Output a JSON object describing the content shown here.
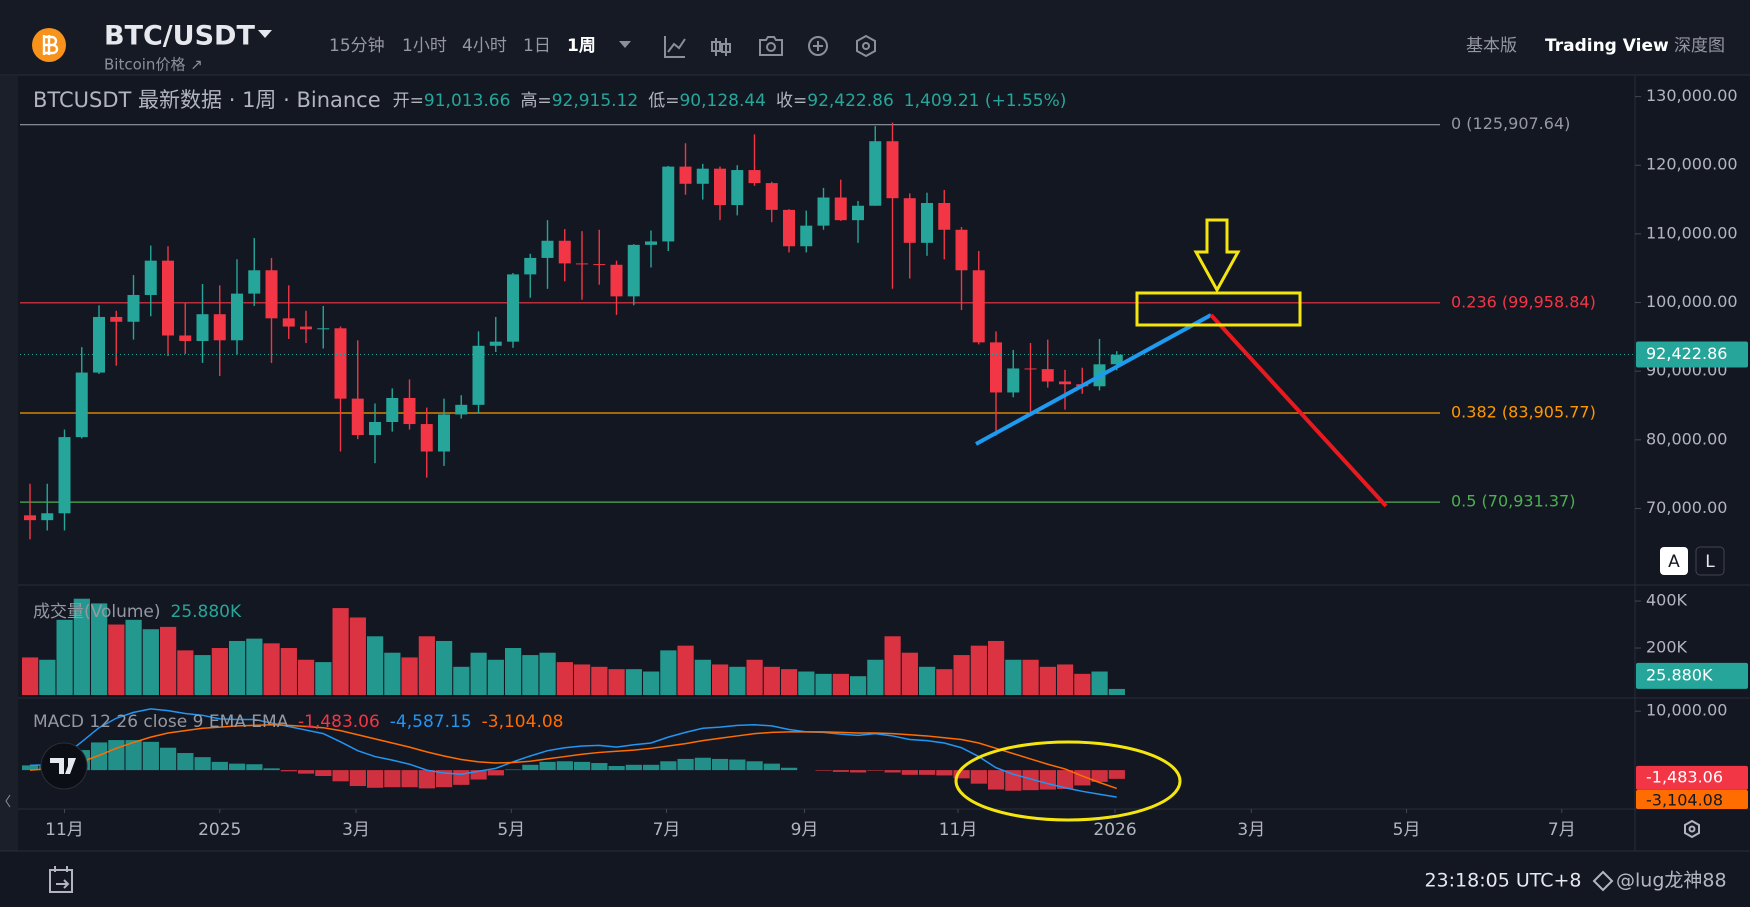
{
  "header": {
    "symbol": "BTC/USDT",
    "subtitle": "Bitcoin价格 ↗",
    "intervals": [
      "15分钟",
      "1小时",
      "4小时",
      "1日"
    ],
    "active_interval": "1周",
    "views": [
      "基本版",
      "Trading View",
      "深度图"
    ]
  },
  "legend": {
    "symbol_line": "BTCUSDT 最新数据 · 1周 · Binance",
    "ohlc": [
      {
        "key": "开=",
        "value": "91,013.66"
      },
      {
        "key": "高=",
        "value": "92,915.12"
      },
      {
        "key": "低=",
        "value": "90,128.44"
      },
      {
        "key": "收=",
        "value": "92,422.86"
      }
    ],
    "change": "1,409.21 (+1.55%)",
    "price_label": "92,422.86",
    "volume_title": "成交量(Volume)",
    "volume_value": "25.880K",
    "macd_title": "MACD 12 26 close 9 EMA EMA",
    "macd_hist": "-1,483.06",
    "macd_line": "-4,587.15",
    "macd_signal": "-3,104.08",
    "scale_buttons": [
      "A",
      "L"
    ]
  },
  "footer": {
    "time": "23:18:05 UTC+8",
    "watermark": "@lug龙神88"
  },
  "chart_data": {
    "type": "candlestick",
    "up_color": "#26a69a",
    "down_color": "#f23645",
    "ylim": [
      59000,
      133000
    ],
    "yticks": [
      {
        "value": 70000,
        "label": "70,000.00"
      },
      {
        "value": 80000,
        "label": "80,000.00"
      },
      {
        "value": 90000,
        "label": "90,000.00"
      },
      {
        "value": 100000,
        "label": "100,000.00"
      },
      {
        "value": 110000,
        "label": "110,000.00"
      },
      {
        "value": 120000,
        "label": "120,000.00"
      },
      {
        "value": 130000,
        "label": "130,000.00"
      }
    ],
    "xticks": [
      {
        "value": 2,
        "label": "11月"
      },
      {
        "value": 11,
        "label": "2025"
      },
      {
        "value": 18.9,
        "label": "3月"
      },
      {
        "value": 27.9,
        "label": "5月"
      },
      {
        "value": 36.9,
        "label": "7月"
      },
      {
        "value": 44.9,
        "label": "9月"
      },
      {
        "value": 53.8,
        "label": "11月"
      },
      {
        "value": 62.9,
        "label": "2026"
      },
      {
        "value": 70.8,
        "label": "3月"
      },
      {
        "value": 79.8,
        "label": "5月"
      },
      {
        "value": 88.8,
        "label": "7月"
      }
    ],
    "fib_levels": [
      {
        "price": 125907.64,
        "label": "0 (125,907.64)",
        "color": "#9598a1"
      },
      {
        "price": 99958.84,
        "label": "0.236 (99,958.84)",
        "color": "#f23645"
      },
      {
        "price": 83905.77,
        "label": "0.382 (83,905.77)",
        "color": "#ff9800"
      },
      {
        "price": 70931.37,
        "label": "0.5 (70,931.37)",
        "color": "#4caf50"
      }
    ],
    "candles": [
      [
        69000,
        73600,
        65500,
        68300,
        160
      ],
      [
        68300,
        73600,
        66800,
        69300,
        150
      ],
      [
        69300,
        81500,
        66800,
        80400,
        320
      ],
      [
        80400,
        93500,
        80200,
        89800,
        410
      ],
      [
        89800,
        99600,
        89600,
        97900,
        390
      ],
      [
        97900,
        98800,
        90800,
        97200,
        300
      ],
      [
        97200,
        104000,
        94600,
        101100,
        320
      ],
      [
        101100,
        108300,
        98000,
        106100,
        280
      ],
      [
        106100,
        108200,
        92200,
        95200,
        290
      ],
      [
        95200,
        99900,
        92500,
        94400,
        190
      ],
      [
        94400,
        102700,
        91200,
        98300,
        170
      ],
      [
        98300,
        102500,
        89300,
        94500,
        200
      ],
      [
        94500,
        106300,
        92400,
        101300,
        230
      ],
      [
        101300,
        109400,
        99500,
        104700,
        240
      ],
      [
        104700,
        106500,
        91200,
        97700,
        220
      ],
      [
        97700,
        102500,
        94700,
        96500,
        200
      ],
      [
        96500,
        98800,
        94100,
        96100,
        150
      ],
      [
        96100,
        99500,
        93300,
        96250,
        140
      ],
      [
        96250,
        96500,
        78300,
        86000,
        370
      ],
      [
        86000,
        94500,
        80100,
        80700,
        330
      ],
      [
        80700,
        85300,
        76600,
        82600,
        250
      ],
      [
        82600,
        87500,
        81200,
        86100,
        180
      ],
      [
        86100,
        88800,
        81500,
        82300,
        160
      ],
      [
        82300,
        84700,
        74500,
        78300,
        250
      ],
      [
        78300,
        86000,
        76200,
        83700,
        230
      ],
      [
        83700,
        86500,
        83100,
        85100,
        120
      ],
      [
        85100,
        95800,
        83900,
        93700,
        180
      ],
      [
        93700,
        97900,
        92800,
        94300,
        150
      ],
      [
        94300,
        104300,
        93400,
        104100,
        200
      ],
      [
        104100,
        107100,
        100700,
        106500,
        170
      ],
      [
        106500,
        112000,
        102000,
        109000,
        180
      ],
      [
        109000,
        110700,
        103100,
        105700,
        140
      ],
      [
        105700,
        110400,
        100400,
        105600,
        130
      ],
      [
        105600,
        110600,
        102600,
        105500,
        120
      ],
      [
        105500,
        106100,
        98200,
        100900,
        110
      ],
      [
        100900,
        108500,
        99600,
        108400,
        110
      ],
      [
        108400,
        110500,
        105100,
        108900,
        100
      ],
      [
        108900,
        119900,
        107500,
        119800,
        190
      ],
      [
        119800,
        123200,
        115700,
        117300,
        210
      ],
      [
        117300,
        120200,
        115000,
        119500,
        150
      ],
      [
        119500,
        119800,
        112000,
        114200,
        130
      ],
      [
        114200,
        120000,
        112700,
        119300,
        120
      ],
      [
        119300,
        124500,
        117000,
        117400,
        150
      ],
      [
        117400,
        117600,
        111700,
        113500,
        120
      ],
      [
        113500,
        113600,
        107300,
        108200,
        110
      ],
      [
        108200,
        113400,
        107300,
        111200,
        100
      ],
      [
        111200,
        116700,
        110600,
        115300,
        90
      ],
      [
        115300,
        117900,
        111900,
        112000,
        90
      ],
      [
        112000,
        114800,
        108700,
        114100,
        80
      ],
      [
        114100,
        125700,
        114100,
        123500,
        150
      ],
      [
        123500,
        126200,
        102000,
        115200,
        250
      ],
      [
        115200,
        115900,
        103500,
        108700,
        180
      ],
      [
        108700,
        116000,
        106800,
        114500,
        120
      ],
      [
        114500,
        116400,
        106300,
        110600,
        110
      ],
      [
        110600,
        111000,
        98900,
        104700,
        170
      ],
      [
        104700,
        107500,
        93900,
        94200,
        210
      ],
      [
        94200,
        95800,
        80600,
        86900,
        230
      ],
      [
        86900,
        93100,
        86200,
        90400,
        150
      ],
      [
        90400,
        94100,
        83800,
        90300,
        150
      ],
      [
        90300,
        94600,
        87600,
        88500,
        120
      ],
      [
        88500,
        90200,
        84400,
        88100,
        130
      ],
      [
        88100,
        90500,
        86700,
        87800,
        90
      ],
      [
        87800,
        94700,
        87200,
        91000,
        100
      ],
      [
        91013.66,
        92915.12,
        90128.44,
        92422.86,
        25.88
      ]
    ],
    "volume_ylim": [
      0,
      464
    ],
    "volume_yticks": [
      {
        "value": 200,
        "label": "200K"
      },
      {
        "value": 400,
        "label": "400K"
      }
    ],
    "macd_ylim": [
      -6600,
      11900
    ],
    "macd_yticks": [
      {
        "value": 10000,
        "label": "10,000.00"
      }
    ],
    "macd_color": "#2196f3",
    "signal_color": "#ff6d00",
    "hist_up_color": "#26a69a",
    "hist_down_color": "#f23645",
    "macd": [
      800,
      900,
      2500,
      4800,
      7200,
      8800,
      9800,
      10400,
      10100,
      9600,
      9300,
      8700,
      8600,
      8600,
      8000,
      7400,
      6800,
      6200,
      4800,
      3300,
      2300,
      1700,
      1000,
      0,
      -500,
      -700,
      -200,
      300,
      1400,
      2400,
      3300,
      3800,
      4100,
      4200,
      3900,
      4300,
      4600,
      5600,
      6400,
      7100,
      7300,
      7600,
      7700,
      7500,
      6900,
      6500,
      6400,
      6100,
      5900,
      6200,
      5800,
      5200,
      5000,
      4600,
      3800,
      2300,
      400,
      -700,
      -1500,
      -2300,
      -3000,
      -3600,
      -4100,
      -4587.15
    ],
    "signal": [
      0,
      200,
      600,
      1400,
      2500,
      3700,
      4700,
      5600,
      6300,
      6700,
      7100,
      7300,
      7500,
      7600,
      7700,
      7600,
      7400,
      7200,
      6700,
      6000,
      5300,
      4600,
      3900,
      3100,
      2400,
      1800,
      1400,
      1200,
      1300,
      1500,
      1900,
      2300,
      2700,
      3000,
      3200,
      3400,
      3700,
      4100,
      4500,
      5000,
      5400,
      5800,
      6200,
      6400,
      6500,
      6500,
      6500,
      6400,
      6300,
      6300,
      6200,
      6000,
      5800,
      5500,
      5200,
      4600,
      3700,
      2800,
      1900,
      1000,
      200,
      -1000,
      -2100,
      -3104.08
    ]
  }
}
